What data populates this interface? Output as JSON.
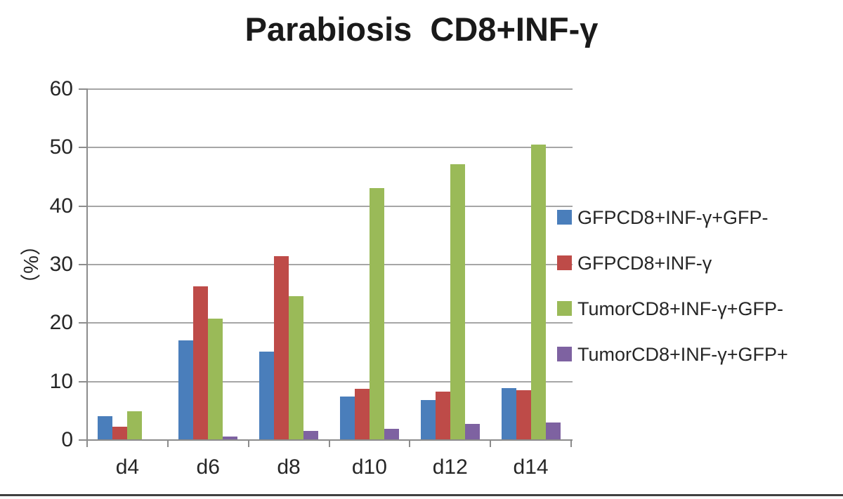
{
  "chart_data": {
    "type": "bar",
    "title": "Parabiosis  CD8+INF-γ",
    "ylabel": "（%）",
    "categories": [
      "d4",
      "d6",
      "d8",
      "d10",
      "d12",
      "d14"
    ],
    "series": [
      {
        "name": "GFPCD8+INF-γ+GFP-",
        "color": "#4A7EBB",
        "values": [
          4.0,
          16.9,
          15.0,
          7.3,
          6.7,
          8.8
        ]
      },
      {
        "name": "GFPCD8+INF-γ",
        "color": "#BE4B48",
        "values": [
          2.2,
          26.2,
          31.3,
          8.6,
          8.2,
          8.4
        ]
      },
      {
        "name": "TumorCD8+INF-γ+GFP-",
        "color": "#9ABA58",
        "values": [
          4.8,
          20.7,
          24.5,
          43.0,
          47.1,
          50.4
        ]
      },
      {
        "name": "TumorCD8+INF-γ+GFP+",
        "color": "#7E62A1",
        "values": [
          0,
          0.5,
          1.4,
          1.8,
          2.7,
          2.9
        ]
      }
    ],
    "ylim": [
      0,
      60
    ],
    "yticks": [
      0,
      10,
      20,
      30,
      40,
      50,
      60
    ],
    "grid": true,
    "legend_position": "right"
  },
  "colors": {
    "grid": "#A6A6A6",
    "axis": "#8C8C8C",
    "text": "#262626",
    "title": "#1A1A1A"
  }
}
